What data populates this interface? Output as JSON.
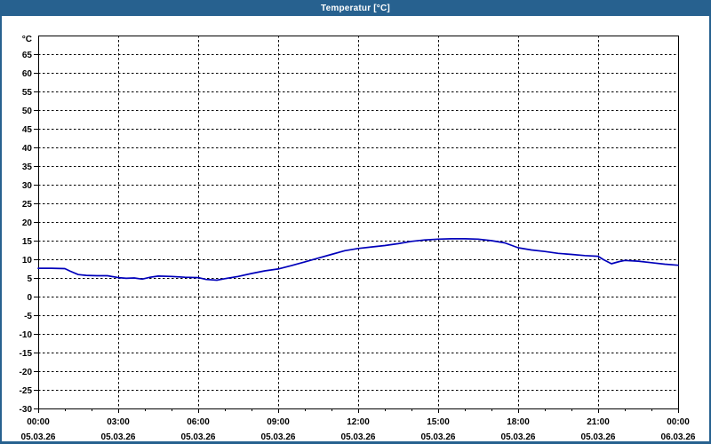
{
  "window": {
    "title": "Temperatur [°C]",
    "titlebar_color": "#27618f",
    "border_color": "#27618f"
  },
  "chart_data": {
    "type": "line",
    "title": "Temperatur [°C]",
    "ylabel": "°C",
    "ylim": [
      -30,
      70
    ],
    "yticks": {
      "start": -30,
      "end": 65,
      "step": 5
    },
    "xlim": [
      0,
      24
    ],
    "x_unit": "hours",
    "major_x_ticks_hours": [
      0,
      3,
      6,
      9,
      12,
      15,
      18,
      21,
      24
    ],
    "minor_x_tick_every_hours": 1,
    "xtick_labels": [
      {
        "time": "00:00",
        "date": "05.03.26"
      },
      {
        "time": "03:00",
        "date": "05.03.26"
      },
      {
        "time": "06:00",
        "date": "05.03.26"
      },
      {
        "time": "09:00",
        "date": "05.03.26"
      },
      {
        "time": "12:00",
        "date": "05.03.26"
      },
      {
        "time": "15:00",
        "date": "05.03.26"
      },
      {
        "time": "18:00",
        "date": "05.03.26"
      },
      {
        "time": "21:00",
        "date": "05.03.26"
      },
      {
        "time": "00:00",
        "date": "06.03.26"
      }
    ],
    "grid": "dashed",
    "grid_color": "#000000",
    "line_color": "#0000bb",
    "series": [
      {
        "name": "Temperatur",
        "points": [
          [
            0,
            7.6
          ],
          [
            0.5,
            7.6
          ],
          [
            1,
            7.5
          ],
          [
            1.2,
            6.8
          ],
          [
            1.5,
            5.9
          ],
          [
            1.8,
            5.7
          ],
          [
            2.2,
            5.6
          ],
          [
            2.6,
            5.6
          ],
          [
            3,
            5.1
          ],
          [
            3.3,
            4.9
          ],
          [
            3.6,
            5.0
          ],
          [
            3.9,
            4.7
          ],
          [
            4.2,
            5.2
          ],
          [
            4.5,
            5.5
          ],
          [
            5,
            5.4
          ],
          [
            5.5,
            5.2
          ],
          [
            6,
            5.1
          ],
          [
            6.3,
            4.6
          ],
          [
            6.7,
            4.4
          ],
          [
            7,
            4.8
          ],
          [
            7.5,
            5.4
          ],
          [
            8,
            6.2
          ],
          [
            8.5,
            6.9
          ],
          [
            9,
            7.4
          ],
          [
            9.5,
            8.3
          ],
          [
            10,
            9.3
          ],
          [
            10.5,
            10.3
          ],
          [
            11,
            11.3
          ],
          [
            11.5,
            12.3
          ],
          [
            12,
            12.9
          ],
          [
            12.5,
            13.3
          ],
          [
            13,
            13.7
          ],
          [
            13.5,
            14.2
          ],
          [
            14,
            14.8
          ],
          [
            14.5,
            15.2
          ],
          [
            15,
            15.4
          ],
          [
            15.5,
            15.5
          ],
          [
            16,
            15.5
          ],
          [
            16.5,
            15.4
          ],
          [
            17,
            15.0
          ],
          [
            17.5,
            14.4
          ],
          [
            18,
            13.1
          ],
          [
            18.5,
            12.5
          ],
          [
            19,
            12.1
          ],
          [
            19.5,
            11.6
          ],
          [
            20,
            11.3
          ],
          [
            20.5,
            11.0
          ],
          [
            21,
            10.8
          ],
          [
            21.2,
            9.9
          ],
          [
            21.5,
            8.8
          ],
          [
            21.8,
            9.4
          ],
          [
            22,
            9.7
          ],
          [
            22.5,
            9.5
          ],
          [
            23,
            9.1
          ],
          [
            23.5,
            8.7
          ],
          [
            24,
            8.4
          ]
        ]
      }
    ]
  }
}
